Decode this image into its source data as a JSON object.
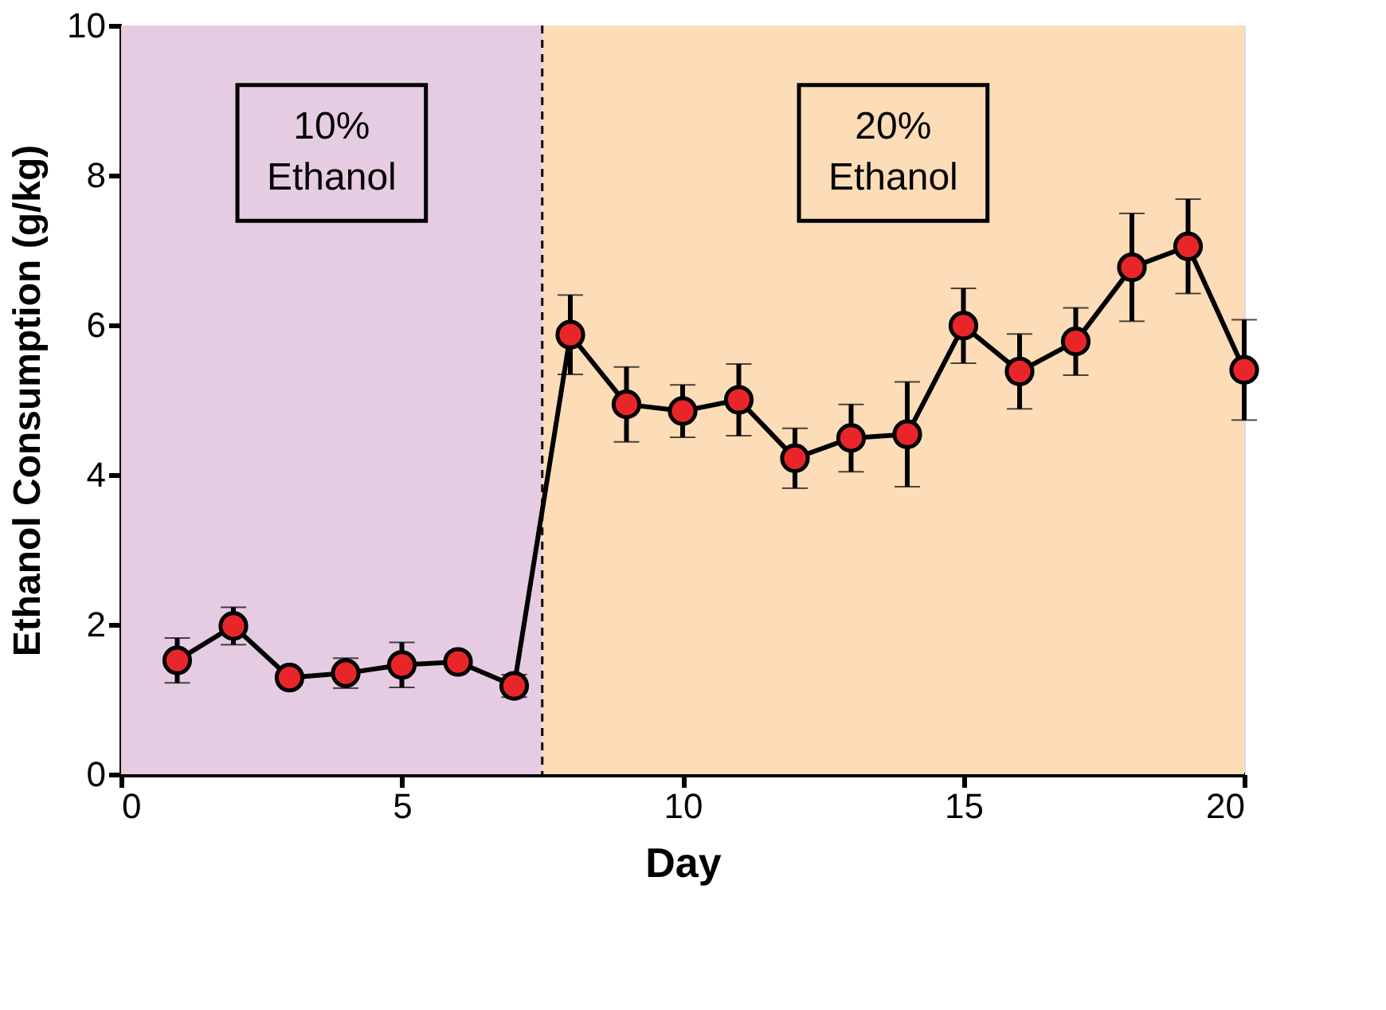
{
  "chart_data": {
    "type": "line",
    "xlabel": "Day",
    "ylabel": "Ethanol Consumption (g/kg)",
    "x": [
      1,
      2,
      3,
      4,
      5,
      6,
      7,
      8,
      9,
      10,
      11,
      12,
      13,
      14,
      15,
      16,
      17,
      18,
      19,
      20
    ],
    "series": [
      {
        "color": "#e8262a",
        "values": [
          1.52,
          1.98,
          1.29,
          1.35,
          1.46,
          1.5,
          1.18,
          5.87,
          4.94,
          4.85,
          5.0,
          4.22,
          4.49,
          4.54,
          5.99,
          5.38,
          5.78,
          6.77,
          7.05,
          5.4
        ],
        "errors": [
          0.3,
          0.25,
          0.1,
          0.2,
          0.3,
          0.1,
          0.15,
          0.53,
          0.5,
          0.35,
          0.48,
          0.4,
          0.45,
          0.7,
          0.5,
          0.5,
          0.45,
          0.72,
          0.63,
          0.67
        ]
      }
    ],
    "xlim": [
      0,
      20
    ],
    "xticks": [
      0,
      5,
      10,
      15,
      20
    ],
    "ylim": [
      0,
      10
    ],
    "yticks": [
      0,
      2,
      4,
      6,
      8,
      10
    ],
    "bands": [
      {
        "axis": "x",
        "from": 0,
        "to": 7.5,
        "label": "10%\nEthanol",
        "color": "#e6cce3"
      },
      {
        "axis": "x",
        "from": 7.5,
        "to": 20,
        "label": "20%\nEthanol",
        "color": "#fddcb8"
      }
    ],
    "ref_lines": [
      {
        "axis": "x",
        "value": 7.5,
        "line_style": "dashed"
      }
    ],
    "marker": "circle",
    "line_style": "solid",
    "grid": false
  }
}
